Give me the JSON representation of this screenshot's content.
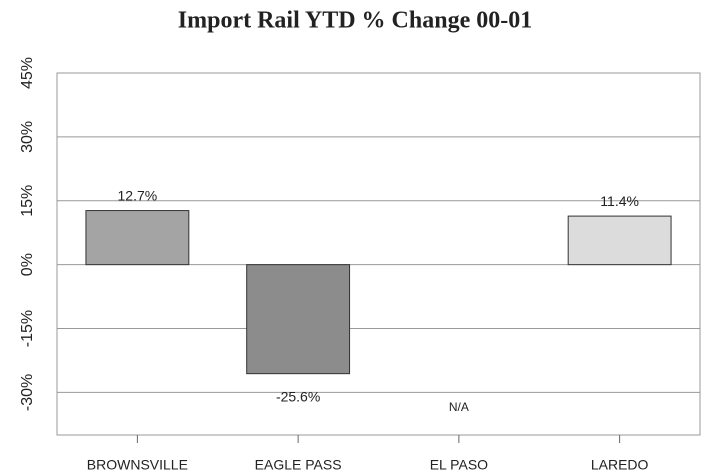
{
  "chart_data": {
    "type": "bar",
    "title": "Import Rail YTD % Change 00-01",
    "categories": [
      "BROWNSVILLE",
      "EAGLE PASS",
      "EL PASO",
      "LAREDO"
    ],
    "values": [
      12.7,
      -25.6,
      null,
      11.4
    ],
    "value_labels": [
      "12.7%",
      "-25.6%",
      "N/A",
      "11.4%"
    ],
    "colors": [
      "#a4a4a4",
      "#8c8c8c",
      "#cccccc",
      "#dcdcdc"
    ],
    "ylim": [
      -40,
      45
    ],
    "yticks": [
      {
        "value": -30,
        "label": "-30%"
      },
      {
        "value": -15,
        "label": "-15%"
      },
      {
        "value": 0,
        "label": "0%"
      },
      {
        "value": 15,
        "label": "15%"
      },
      {
        "value": 30,
        "label": "30%"
      },
      {
        "value": 45,
        "label": "45%"
      }
    ],
    "grid": true
  }
}
